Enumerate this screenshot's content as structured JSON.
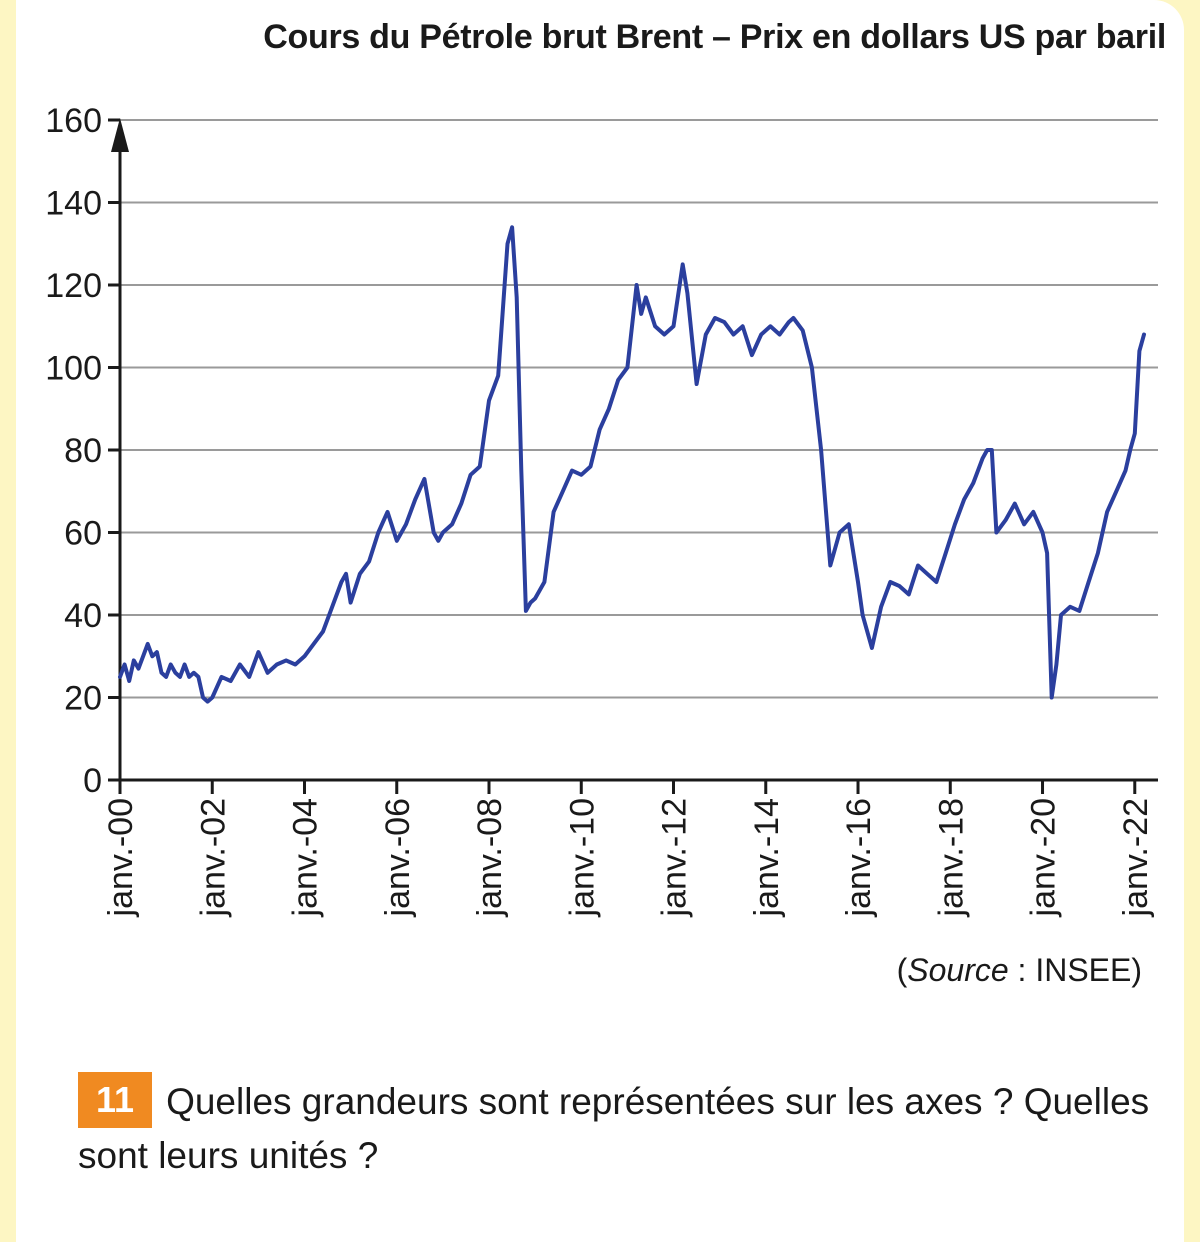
{
  "chart_data": {
    "type": "line",
    "title": "Cours du Pétrole brut Brent – Prix en dollars US par baril",
    "xlabel": "",
    "ylabel": "",
    "ylim": [
      0,
      160
    ],
    "yticks": [
      0,
      20,
      40,
      60,
      80,
      100,
      120,
      140,
      160
    ],
    "xticks": [
      {
        "x": 2000,
        "label": "janv.-00"
      },
      {
        "x": 2002,
        "label": "janv.-02"
      },
      {
        "x": 2004,
        "label": "janv.-04"
      },
      {
        "x": 2006,
        "label": "janv.-06"
      },
      {
        "x": 2008,
        "label": "janv.-08"
      },
      {
        "x": 2010,
        "label": "janv.-10"
      },
      {
        "x": 2012,
        "label": "janv.-12"
      },
      {
        "x": 2014,
        "label": "janv.-14"
      },
      {
        "x": 2016,
        "label": "janv.-16"
      },
      {
        "x": 2018,
        "label": "janv.-18"
      },
      {
        "x": 2020,
        "label": "janv.-20"
      },
      {
        "x": 2022,
        "label": "janv.-22"
      }
    ],
    "xlim": [
      2000,
      2022.2
    ],
    "grid": true,
    "series": [
      {
        "name": "Brent",
        "color": "#2b3f9e",
        "x": [
          2000.0,
          2000.1,
          2000.2,
          2000.3,
          2000.4,
          2000.5,
          2000.6,
          2000.7,
          2000.8,
          2000.9,
          2001.0,
          2001.1,
          2001.2,
          2001.3,
          2001.4,
          2001.5,
          2001.6,
          2001.7,
          2001.8,
          2001.9,
          2002.0,
          2002.2,
          2002.4,
          2002.6,
          2002.8,
          2003.0,
          2003.2,
          2003.4,
          2003.6,
          2003.8,
          2004.0,
          2004.2,
          2004.4,
          2004.6,
          2004.8,
          2004.9,
          2005.0,
          2005.2,
          2005.4,
          2005.6,
          2005.8,
          2006.0,
          2006.2,
          2006.4,
          2006.6,
          2006.8,
          2006.9,
          2007.0,
          2007.2,
          2007.4,
          2007.6,
          2007.8,
          2008.0,
          2008.2,
          2008.4,
          2008.5,
          2008.6,
          2008.7,
          2008.8,
          2008.9,
          2009.0,
          2009.2,
          2009.4,
          2009.6,
          2009.8,
          2010.0,
          2010.2,
          2010.4,
          2010.6,
          2010.8,
          2011.0,
          2011.1,
          2011.2,
          2011.3,
          2011.4,
          2011.6,
          2011.8,
          2012.0,
          2012.2,
          2012.3,
          2012.5,
          2012.7,
          2012.9,
          2013.1,
          2013.3,
          2013.5,
          2013.7,
          2013.9,
          2014.1,
          2014.3,
          2014.5,
          2014.6,
          2014.8,
          2015.0,
          2015.2,
          2015.4,
          2015.6,
          2015.8,
          2016.0,
          2016.1,
          2016.3,
          2016.5,
          2016.7,
          2016.9,
          2017.1,
          2017.3,
          2017.5,
          2017.7,
          2017.9,
          2018.1,
          2018.3,
          2018.5,
          2018.7,
          2018.8,
          2018.9,
          2019.0,
          2019.2,
          2019.4,
          2019.6,
          2019.8,
          2020.0,
          2020.1,
          2020.2,
          2020.3,
          2020.4,
          2020.6,
          2020.8,
          2021.0,
          2021.2,
          2021.4,
          2021.6,
          2021.8,
          2021.9,
          2022.0,
          2022.1,
          2022.2
        ],
        "y": [
          25,
          28,
          24,
          29,
          27,
          30,
          33,
          30,
          31,
          26,
          25,
          28,
          26,
          25,
          28,
          25,
          26,
          25,
          20,
          19,
          20,
          25,
          24,
          28,
          25,
          31,
          26,
          28,
          29,
          28,
          30,
          33,
          36,
          42,
          48,
          50,
          43,
          50,
          53,
          60,
          65,
          58,
          62,
          68,
          73,
          60,
          58,
          60,
          62,
          67,
          74,
          76,
          92,
          98,
          130,
          134,
          117,
          75,
          41,
          43,
          44,
          48,
          65,
          70,
          75,
          74,
          76,
          85,
          90,
          97,
          100,
          110,
          120,
          113,
          117,
          110,
          108,
          110,
          125,
          118,
          96,
          108,
          112,
          111,
          108,
          110,
          103,
          108,
          110,
          108,
          111,
          112,
          109,
          100,
          80,
          52,
          60,
          62,
          48,
          40,
          32,
          42,
          48,
          47,
          45,
          52,
          50,
          48,
          55,
          62,
          68,
          72,
          78,
          80,
          80,
          60,
          63,
          67,
          62,
          65,
          60,
          55,
          20,
          28,
          40,
          42,
          41,
          48,
          55,
          65,
          70,
          75,
          80,
          84,
          104,
          108
        ]
      }
    ]
  },
  "source": {
    "prefix": "(",
    "word": "Source",
    "rest": " : INSEE)"
  },
  "question": {
    "number": "11",
    "text": "Quelles grandeurs sont représentées sur les axes ? Quelles sont leurs unités ?"
  }
}
